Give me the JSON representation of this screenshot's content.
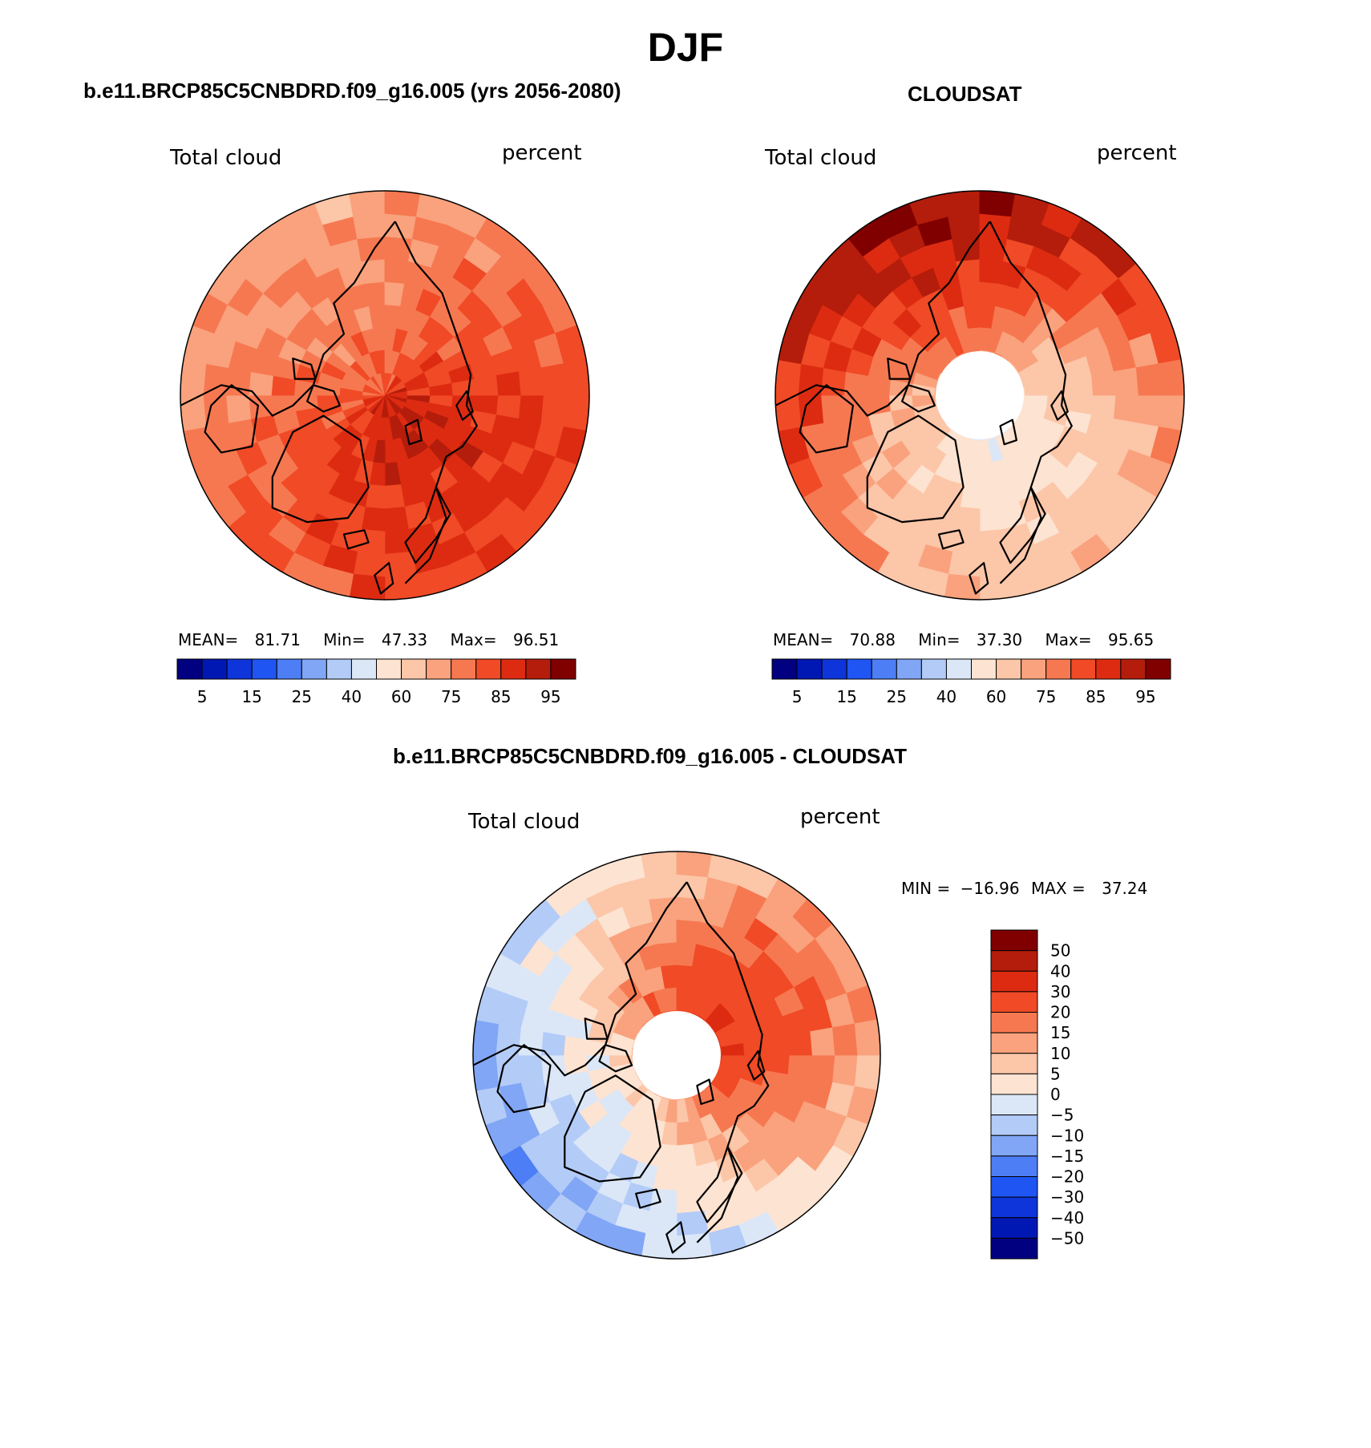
{
  "title": "DJF",
  "colors": {
    "seq": [
      "#000080",
      "#0018b3",
      "#0d35d9",
      "#1f55f2",
      "#4d7ef5",
      "#80a6f5",
      "#b3cbf7",
      "#dbe7f7",
      "#fde3d1",
      "#fcc6a8",
      "#f9a27d",
      "#f67851",
      "#f04a26",
      "#dd2b12",
      "#b41d0b",
      "#800000"
    ],
    "diff": [
      "#000080",
      "#0018b3",
      "#0d35d9",
      "#1f55f2",
      "#4d7ef5",
      "#80a6f5",
      "#b3cbf7",
      "#dbe7f7",
      "#fde3d1",
      "#fcc6a8",
      "#f9a27d",
      "#f67851",
      "#f04a26",
      "#dd2b12",
      "#b41d0b",
      "#800000"
    ],
    "coast": "#000000"
  },
  "chart_data": [
    {
      "type": "heatmap",
      "projection": "north-polar-stereographic",
      "title": "b.e11.BRCP85C5CNBDRD.f09_g16.005 (yrs 2056-2080)",
      "left_label": "Total cloud",
      "right_label": "percent",
      "stats": {
        "mean_label": "MEAN=",
        "mean": "81.71",
        "min_label": "Min=",
        "min": "47.33",
        "max_label": "Max=",
        "max": "96.51"
      },
      "levels": [
        5,
        10,
        15,
        20,
        25,
        30,
        40,
        50,
        60,
        70,
        75,
        80,
        85,
        90,
        95
      ],
      "colorbar_ticks": [
        "5",
        "15",
        "25",
        "40",
        "60",
        "75",
        "85",
        "95"
      ],
      "pole_hole": false,
      "field": {
        "base": 81.7,
        "amp_lon": 6,
        "amp_lat": -4,
        "phase": 35
      }
    },
    {
      "type": "heatmap",
      "projection": "north-polar-stereographic",
      "title": "CLOUDSAT",
      "left_label": "Total cloud",
      "right_label": "percent",
      "stats": {
        "mean_label": "MEAN=",
        "mean": "70.88",
        "min_label": "Min=",
        "min": "37.30",
        "max_label": "Max=",
        "max": "95.65"
      },
      "levels": [
        5,
        10,
        15,
        20,
        25,
        30,
        40,
        50,
        60,
        70,
        75,
        80,
        85,
        90,
        95
      ],
      "colorbar_ticks": [
        "5",
        "15",
        "25",
        "40",
        "60",
        "75",
        "85",
        "95"
      ],
      "pole_hole": true,
      "field": {
        "base": 70.9,
        "amp_lon": 14,
        "amp_lat": 12,
        "phase": 200
      }
    },
    {
      "type": "heatmap",
      "projection": "north-polar-stereographic",
      "title": "b.e11.BRCP85C5CNBDRD.f09_g16.005 - CLOUDSAT",
      "left_label": "Total cloud",
      "right_label": "percent",
      "stats": {
        "min_label": "MIN =",
        "min": "−16.96",
        "max_label": "MAX =",
        "max": "37.24"
      },
      "levels": [
        -50,
        -40,
        -30,
        -20,
        -15,
        -10,
        -5,
        0,
        5,
        10,
        15,
        20,
        30,
        40,
        50
      ],
      "colorbar_ticks": [
        "50",
        "40",
        "30",
        "20",
        "15",
        "10",
        "5",
        "0",
        "−5",
        "−10",
        "−15",
        "−20",
        "−30",
        "−40",
        "−50"
      ],
      "colorbar_orientation": "vertical",
      "pole_hole": true,
      "field": {
        "base": 11,
        "amp_lon": 13,
        "amp_lat": -12,
        "phase": 120
      }
    }
  ]
}
